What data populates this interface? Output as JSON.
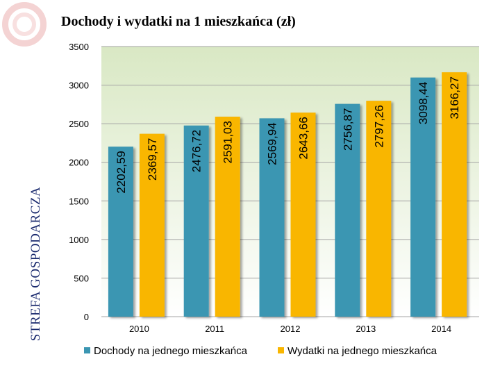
{
  "title": "Dochody i wydatki na 1 mieszkańca (zł)",
  "side_label": "STREFA GOSPODARCZA",
  "colors": {
    "income": "#3b96b2",
    "expense": "#f9b600",
    "plot_background": "#d9e8c4",
    "gridline": "#a4a4a4",
    "side_label": "#1a2a6e"
  },
  "chart_data": {
    "type": "bar",
    "title": "Dochody i wydatki na 1 mieszkańca (zł)",
    "xlabel": "",
    "ylabel": "",
    "categories": [
      "2010",
      "2011",
      "2012",
      "2013",
      "2014"
    ],
    "ylim": [
      0,
      3500
    ],
    "yticks": [
      "0",
      "500",
      "1000",
      "1500",
      "2000",
      "2500",
      "3000",
      "3500"
    ],
    "grid": true,
    "legend_position": "bottom",
    "series": [
      {
        "name": "Dochody na jednego mieszkańca",
        "values": [
          2202.59,
          2476.72,
          2569.94,
          2756.87,
          3098.44
        ],
        "labels": [
          "2202,59",
          "2476,72",
          "2569,94",
          "2756,87",
          "3098,44"
        ]
      },
      {
        "name": "Wydatki na jednego mieszkańca",
        "values": [
          2369.57,
          2591.03,
          2643.66,
          2797.26,
          3166.27
        ],
        "labels": [
          "2369,57",
          "2591,03",
          "2643,66",
          "2797,26",
          "3166,27"
        ]
      }
    ]
  }
}
